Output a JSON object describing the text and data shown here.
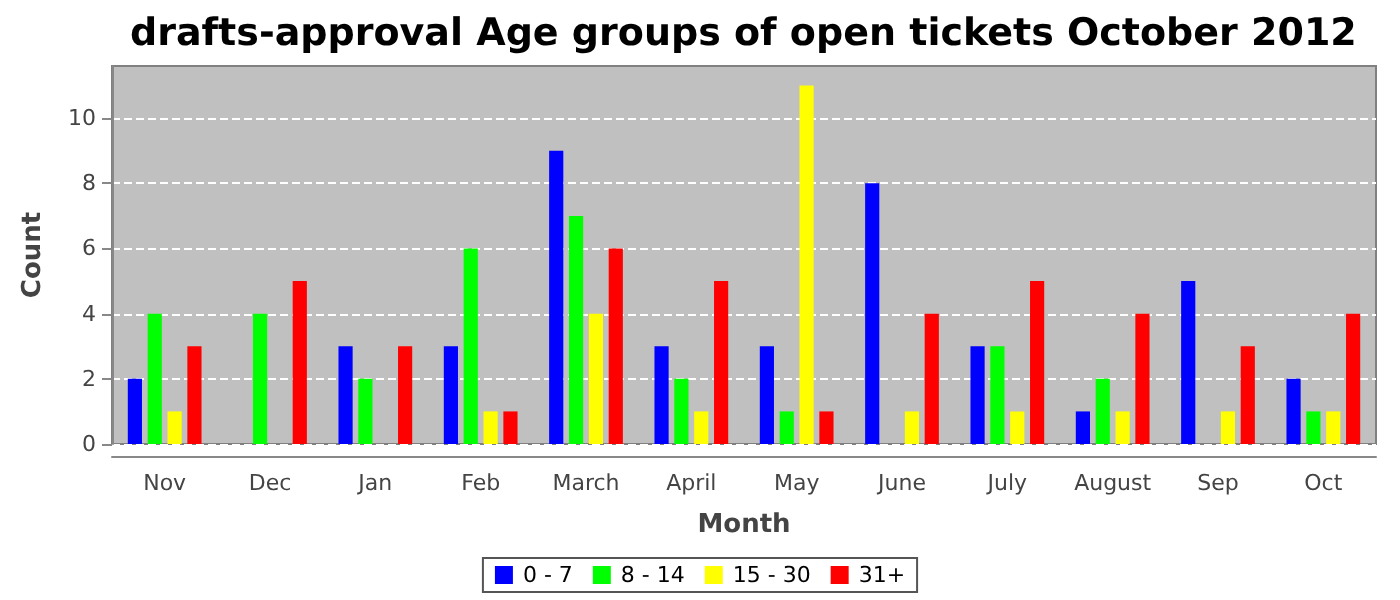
{
  "chart_data": {
    "type": "bar",
    "title": "drafts-approval Age groups of open tickets October 2012",
    "xlabel": "Month",
    "ylabel": "Count",
    "categories": [
      "Nov",
      "Dec",
      "Jan",
      "Feb",
      "March",
      "April",
      "May",
      "June",
      "July",
      "August",
      "Sep",
      "Oct"
    ],
    "series": [
      {
        "name": "0 - 7",
        "color": "#0000ff",
        "values": [
          2,
          0,
          3,
          3,
          9,
          3,
          3,
          8,
          3,
          1,
          5,
          2
        ]
      },
      {
        "name": "8 - 14",
        "color": "#00ff00",
        "values": [
          4,
          4,
          2,
          6,
          7,
          2,
          1,
          0,
          3,
          2,
          0,
          1
        ]
      },
      {
        "name": "15 - 30",
        "color": "#ffff00",
        "values": [
          1,
          0,
          0,
          1,
          4,
          1,
          11,
          1,
          1,
          1,
          1,
          1
        ]
      },
      {
        "name": "31+",
        "color": "#ff0000",
        "values": [
          3,
          5,
          3,
          1,
          6,
          5,
          1,
          4,
          5,
          4,
          3,
          4
        ]
      }
    ],
    "ylim": [
      0,
      11.6
    ],
    "yticks": [
      0,
      2,
      4,
      6,
      8,
      10
    ],
    "grid": "y",
    "legend": "bottom"
  }
}
